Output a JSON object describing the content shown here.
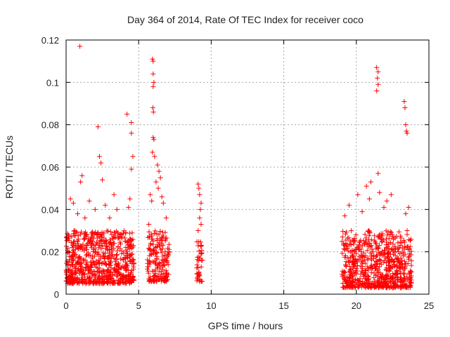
{
  "chart_data": {
    "type": "scatter",
    "title": "Day 364 of 2014, Rate Of TEC Index for receiver coco",
    "xlabel": "GPS time / hours",
    "ylabel": "ROTI / TECUs",
    "xlim": [
      0,
      25
    ],
    "ylim": [
      0,
      0.12
    ],
    "xticks": [
      0,
      5,
      10,
      15,
      20,
      25
    ],
    "xtick_labels": [
      "0",
      "5",
      "10",
      "15",
      "20",
      "25"
    ],
    "yticks": [
      0,
      0.02,
      0.04,
      0.06,
      0.08,
      0.1,
      0.12
    ],
    "ytick_labels": [
      "0",
      "0.02",
      "0.04",
      "0.06",
      "0.08",
      "0.1",
      "0.12"
    ],
    "grid": true,
    "marker": "+",
    "marker_color": "#ff0000",
    "series": [
      {
        "name": "ROTI",
        "clusters": [
          {
            "x_range": [
              0.0,
              4.7
            ],
            "y_range": [
              0.005,
              0.03
            ],
            "count": 700
          },
          {
            "x_range": [
              5.6,
              7.1
            ],
            "y_range": [
              0.006,
              0.03
            ],
            "count": 180
          },
          {
            "x_range": [
              9.0,
              9.4
            ],
            "y_range": [
              0.006,
              0.025
            ],
            "count": 40
          },
          {
            "x_range": [
              19.0,
              23.8
            ],
            "y_range": [
              0.003,
              0.03
            ],
            "count": 700
          }
        ],
        "points": [
          {
            "x": 0.95,
            "y": 0.117
          },
          {
            "x": 2.2,
            "y": 0.079
          },
          {
            "x": 4.2,
            "y": 0.085
          },
          {
            "x": 4.5,
            "y": 0.081
          },
          {
            "x": 4.5,
            "y": 0.076
          },
          {
            "x": 2.3,
            "y": 0.065
          },
          {
            "x": 4.6,
            "y": 0.065
          },
          {
            "x": 4.5,
            "y": 0.059
          },
          {
            "x": 2.4,
            "y": 0.062
          },
          {
            "x": 1.1,
            "y": 0.056
          },
          {
            "x": 1.0,
            "y": 0.053
          },
          {
            "x": 2.5,
            "y": 0.054
          },
          {
            "x": 0.3,
            "y": 0.045
          },
          {
            "x": 0.5,
            "y": 0.043
          },
          {
            "x": 1.6,
            "y": 0.044
          },
          {
            "x": 3.3,
            "y": 0.047
          },
          {
            "x": 2.7,
            "y": 0.042
          },
          {
            "x": 3.5,
            "y": 0.04
          },
          {
            "x": 4.3,
            "y": 0.041
          },
          {
            "x": 4.4,
            "y": 0.045
          },
          {
            "x": 2.0,
            "y": 0.04
          },
          {
            "x": 0.8,
            "y": 0.038
          },
          {
            "x": 3.0,
            "y": 0.036
          },
          {
            "x": 1.3,
            "y": 0.036
          },
          {
            "x": 5.95,
            "y": 0.111
          },
          {
            "x": 6.0,
            "y": 0.11
          },
          {
            "x": 6.0,
            "y": 0.104
          },
          {
            "x": 6.05,
            "y": 0.1
          },
          {
            "x": 6.0,
            "y": 0.098
          },
          {
            "x": 5.98,
            "y": 0.088
          },
          {
            "x": 6.02,
            "y": 0.086
          },
          {
            "x": 6.0,
            "y": 0.074
          },
          {
            "x": 6.05,
            "y": 0.073
          },
          {
            "x": 5.95,
            "y": 0.067
          },
          {
            "x": 6.1,
            "y": 0.065
          },
          {
            "x": 6.3,
            "y": 0.061
          },
          {
            "x": 6.4,
            "y": 0.058
          },
          {
            "x": 6.5,
            "y": 0.055
          },
          {
            "x": 6.2,
            "y": 0.053
          },
          {
            "x": 5.8,
            "y": 0.047
          },
          {
            "x": 6.6,
            "y": 0.046
          },
          {
            "x": 6.7,
            "y": 0.043
          },
          {
            "x": 5.9,
            "y": 0.044
          },
          {
            "x": 6.35,
            "y": 0.05
          },
          {
            "x": 6.9,
            "y": 0.036
          },
          {
            "x": 5.7,
            "y": 0.033
          },
          {
            "x": 9.1,
            "y": 0.052
          },
          {
            "x": 9.15,
            "y": 0.05
          },
          {
            "x": 9.2,
            "y": 0.047
          },
          {
            "x": 9.3,
            "y": 0.043
          },
          {
            "x": 9.25,
            "y": 0.04
          },
          {
            "x": 9.2,
            "y": 0.036
          },
          {
            "x": 9.3,
            "y": 0.033
          },
          {
            "x": 9.1,
            "y": 0.03
          },
          {
            "x": 21.4,
            "y": 0.107
          },
          {
            "x": 21.5,
            "y": 0.105
          },
          {
            "x": 21.45,
            "y": 0.102
          },
          {
            "x": 21.5,
            "y": 0.099
          },
          {
            "x": 21.4,
            "y": 0.096
          },
          {
            "x": 23.3,
            "y": 0.091
          },
          {
            "x": 23.35,
            "y": 0.088
          },
          {
            "x": 23.4,
            "y": 0.08
          },
          {
            "x": 23.45,
            "y": 0.077
          },
          {
            "x": 23.5,
            "y": 0.076
          },
          {
            "x": 21.5,
            "y": 0.057
          },
          {
            "x": 21.0,
            "y": 0.053
          },
          {
            "x": 20.7,
            "y": 0.051
          },
          {
            "x": 21.6,
            "y": 0.048
          },
          {
            "x": 20.1,
            "y": 0.047
          },
          {
            "x": 20.9,
            "y": 0.045
          },
          {
            "x": 22.4,
            "y": 0.047
          },
          {
            "x": 22.1,
            "y": 0.044
          },
          {
            "x": 19.5,
            "y": 0.042
          },
          {
            "x": 21.9,
            "y": 0.041
          },
          {
            "x": 23.6,
            "y": 0.041
          },
          {
            "x": 23.4,
            "y": 0.038
          },
          {
            "x": 19.2,
            "y": 0.037
          },
          {
            "x": 20.4,
            "y": 0.039
          }
        ]
      }
    ]
  }
}
